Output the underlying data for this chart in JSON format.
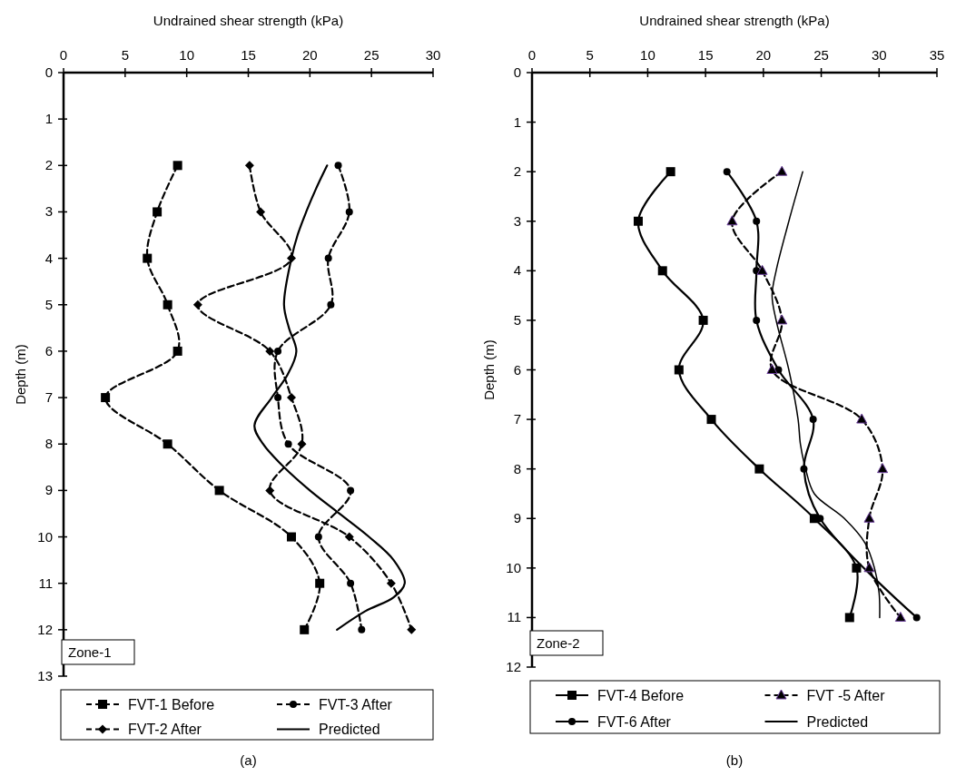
{
  "chart_data": [
    {
      "type": "line",
      "xlabel": "Undrained shear strength (kPa)",
      "ylabel": "Depth (m)",
      "xlim": [
        0,
        30
      ],
      "xticks": [
        0,
        5,
        10,
        15,
        20,
        25,
        30
      ],
      "ylim": [
        13,
        0
      ],
      "yticks": [
        0,
        1,
        2,
        3,
        4,
        5,
        6,
        7,
        8,
        9,
        10,
        11,
        12,
        13
      ],
      "legend": "bottom",
      "annotations": [
        "Zone-1",
        "(a)"
      ],
      "series": [
        {
          "name": "FVT-1 Before",
          "color": "#000000",
          "marker": "square",
          "line_style": "dashed",
          "x": [
            9.26,
            7.6,
            6.8,
            8.45,
            9.26,
            3.4,
            8.45,
            12.65,
            18.5,
            20.8,
            19.55
          ],
          "values": [
            2,
            3,
            4,
            5,
            6,
            7,
            8,
            9,
            10,
            11,
            12
          ]
        },
        {
          "name": "FVT-2 After",
          "color": "#000000",
          "marker": "diamond",
          "line_style": "dashed",
          "x": [
            15.1,
            16.0,
            18.5,
            10.9,
            16.75,
            18.5,
            19.35,
            16.75,
            23.2,
            26.6,
            28.25
          ],
          "values": [
            2,
            3,
            4,
            5,
            6,
            7,
            8,
            9,
            10,
            11,
            12
          ]
        },
        {
          "name": "FVT-3 After",
          "color": "#000000",
          "marker": "circle",
          "line_style": "dashed",
          "x": [
            22.3,
            23.2,
            21.5,
            21.7,
            17.4,
            17.4,
            18.25,
            23.3,
            20.7,
            23.3,
            24.2
          ],
          "values": [
            2,
            3,
            4,
            5,
            6,
            7,
            8,
            9,
            10,
            11,
            12
          ]
        },
        {
          "name": "Predicted",
          "color": "#000000",
          "marker": "none",
          "line_style": "solid",
          "x": [
            21.4,
            20.5,
            19.7,
            19.0,
            18.5,
            17.9,
            18.3,
            18.9,
            18.2,
            16.9,
            15.5,
            16.2,
            17.9,
            20.0,
            22.4,
            24.8,
            26.8,
            27.7,
            26.8,
            24.5,
            22.2
          ],
          "values": [
            2,
            2.5,
            3,
            3.5,
            4,
            5,
            5.5,
            6,
            6.5,
            7,
            7.6,
            8,
            8.5,
            9,
            9.5,
            10,
            10.5,
            11,
            11.3,
            11.6,
            12
          ]
        }
      ]
    },
    {
      "type": "line",
      "xlabel": "Undrained shear strength (kPa)",
      "ylabel": "Depth (m)",
      "xlim": [
        0,
        35
      ],
      "xticks": [
        0,
        5,
        10,
        15,
        20,
        25,
        30,
        35
      ],
      "ylim": [
        12,
        0
      ],
      "yticks": [
        0,
        1,
        2,
        3,
        4,
        5,
        6,
        7,
        8,
        9,
        10,
        11,
        12
      ],
      "legend": "bottom",
      "annotations": [
        "Zone-2",
        "(b)"
      ],
      "series": [
        {
          "name": "FVT-4 Before",
          "color": "#000000",
          "marker": "square",
          "line_style": "solid",
          "x": [
            11.98,
            9.18,
            11.28,
            14.8,
            12.7,
            15.5,
            19.65,
            24.4,
            28.05,
            27.45
          ],
          "values": [
            2,
            3,
            4,
            5,
            6,
            7,
            8,
            9,
            10,
            11
          ]
        },
        {
          "name": "FVT-6 After",
          "color": "#000000",
          "marker": "circle",
          "line_style": "solid",
          "x": [
            16.85,
            19.4,
            19.4,
            19.4,
            21.3,
            24.3,
            23.5,
            24.9,
            null,
            33.25
          ],
          "values": [
            2,
            3,
            4,
            5,
            6,
            7,
            8,
            9,
            null,
            11
          ]
        },
        {
          "name": "FVT -5 After",
          "color": "#000000",
          "marker": "triangle",
          "line_style": "dashed",
          "x": [
            21.6,
            17.3,
            19.9,
            21.6,
            20.75,
            28.5,
            30.3,
            29.15,
            29.15,
            31.85
          ],
          "values": [
            2,
            3,
            4,
            5,
            6,
            7,
            8,
            9,
            10,
            11
          ]
        },
        {
          "name": "Predicted",
          "color": "#000000",
          "marker": "none",
          "line_style": "solid",
          "x": [
            23.4,
            22.2,
            21.1,
            20.75,
            21.1,
            22.2,
            23.0,
            23.2,
            23.65,
            24.4,
            27.0,
            28.8,
            29.6,
            30.0,
            30.05
          ],
          "values": [
            2,
            3,
            4,
            4.5,
            5,
            6,
            7,
            7.5,
            8,
            8.5,
            9,
            9.5,
            10,
            10.5,
            11
          ]
        }
      ]
    }
  ]
}
